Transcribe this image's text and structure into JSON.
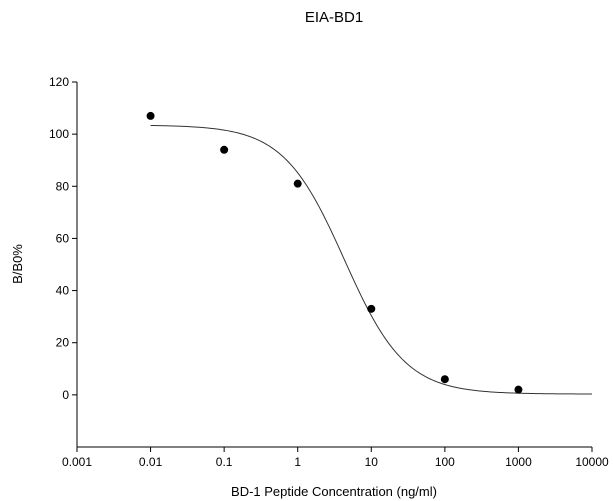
{
  "chart_data": {
    "type": "scatter",
    "title": "EIA-BD1",
    "xlabel": "BD-1 Peptide Concentration (ng/ml)",
    "ylabel": "B/B0%",
    "x_scale": "log",
    "xlim": [
      0.001,
      10000
    ],
    "ylim": [
      -20,
      120
    ],
    "x_ticks": [
      "0.001",
      "0.01",
      "0.1",
      "1",
      "10",
      "100",
      "1000",
      "10000"
    ],
    "y_ticks": [
      "0",
      "20",
      "40",
      "60",
      "80",
      "100",
      "120"
    ],
    "points": [
      {
        "x": 0.01,
        "y": 107
      },
      {
        "x": 0.1,
        "y": 94
      },
      {
        "x": 1,
        "y": 81
      },
      {
        "x": 10,
        "y": 33
      },
      {
        "x": 100,
        "y": 6
      },
      {
        "x": 1000,
        "y": 2
      }
    ],
    "fit_curve": {
      "model": "4-parameter logistic",
      "top": 103.5,
      "bottom": 0.3,
      "ec50": 4.3,
      "hill": 1.05
    },
    "grid": false,
    "legend": "none",
    "colors": {
      "points": "#000000",
      "curve": "#333333",
      "axes": "#000000"
    }
  }
}
